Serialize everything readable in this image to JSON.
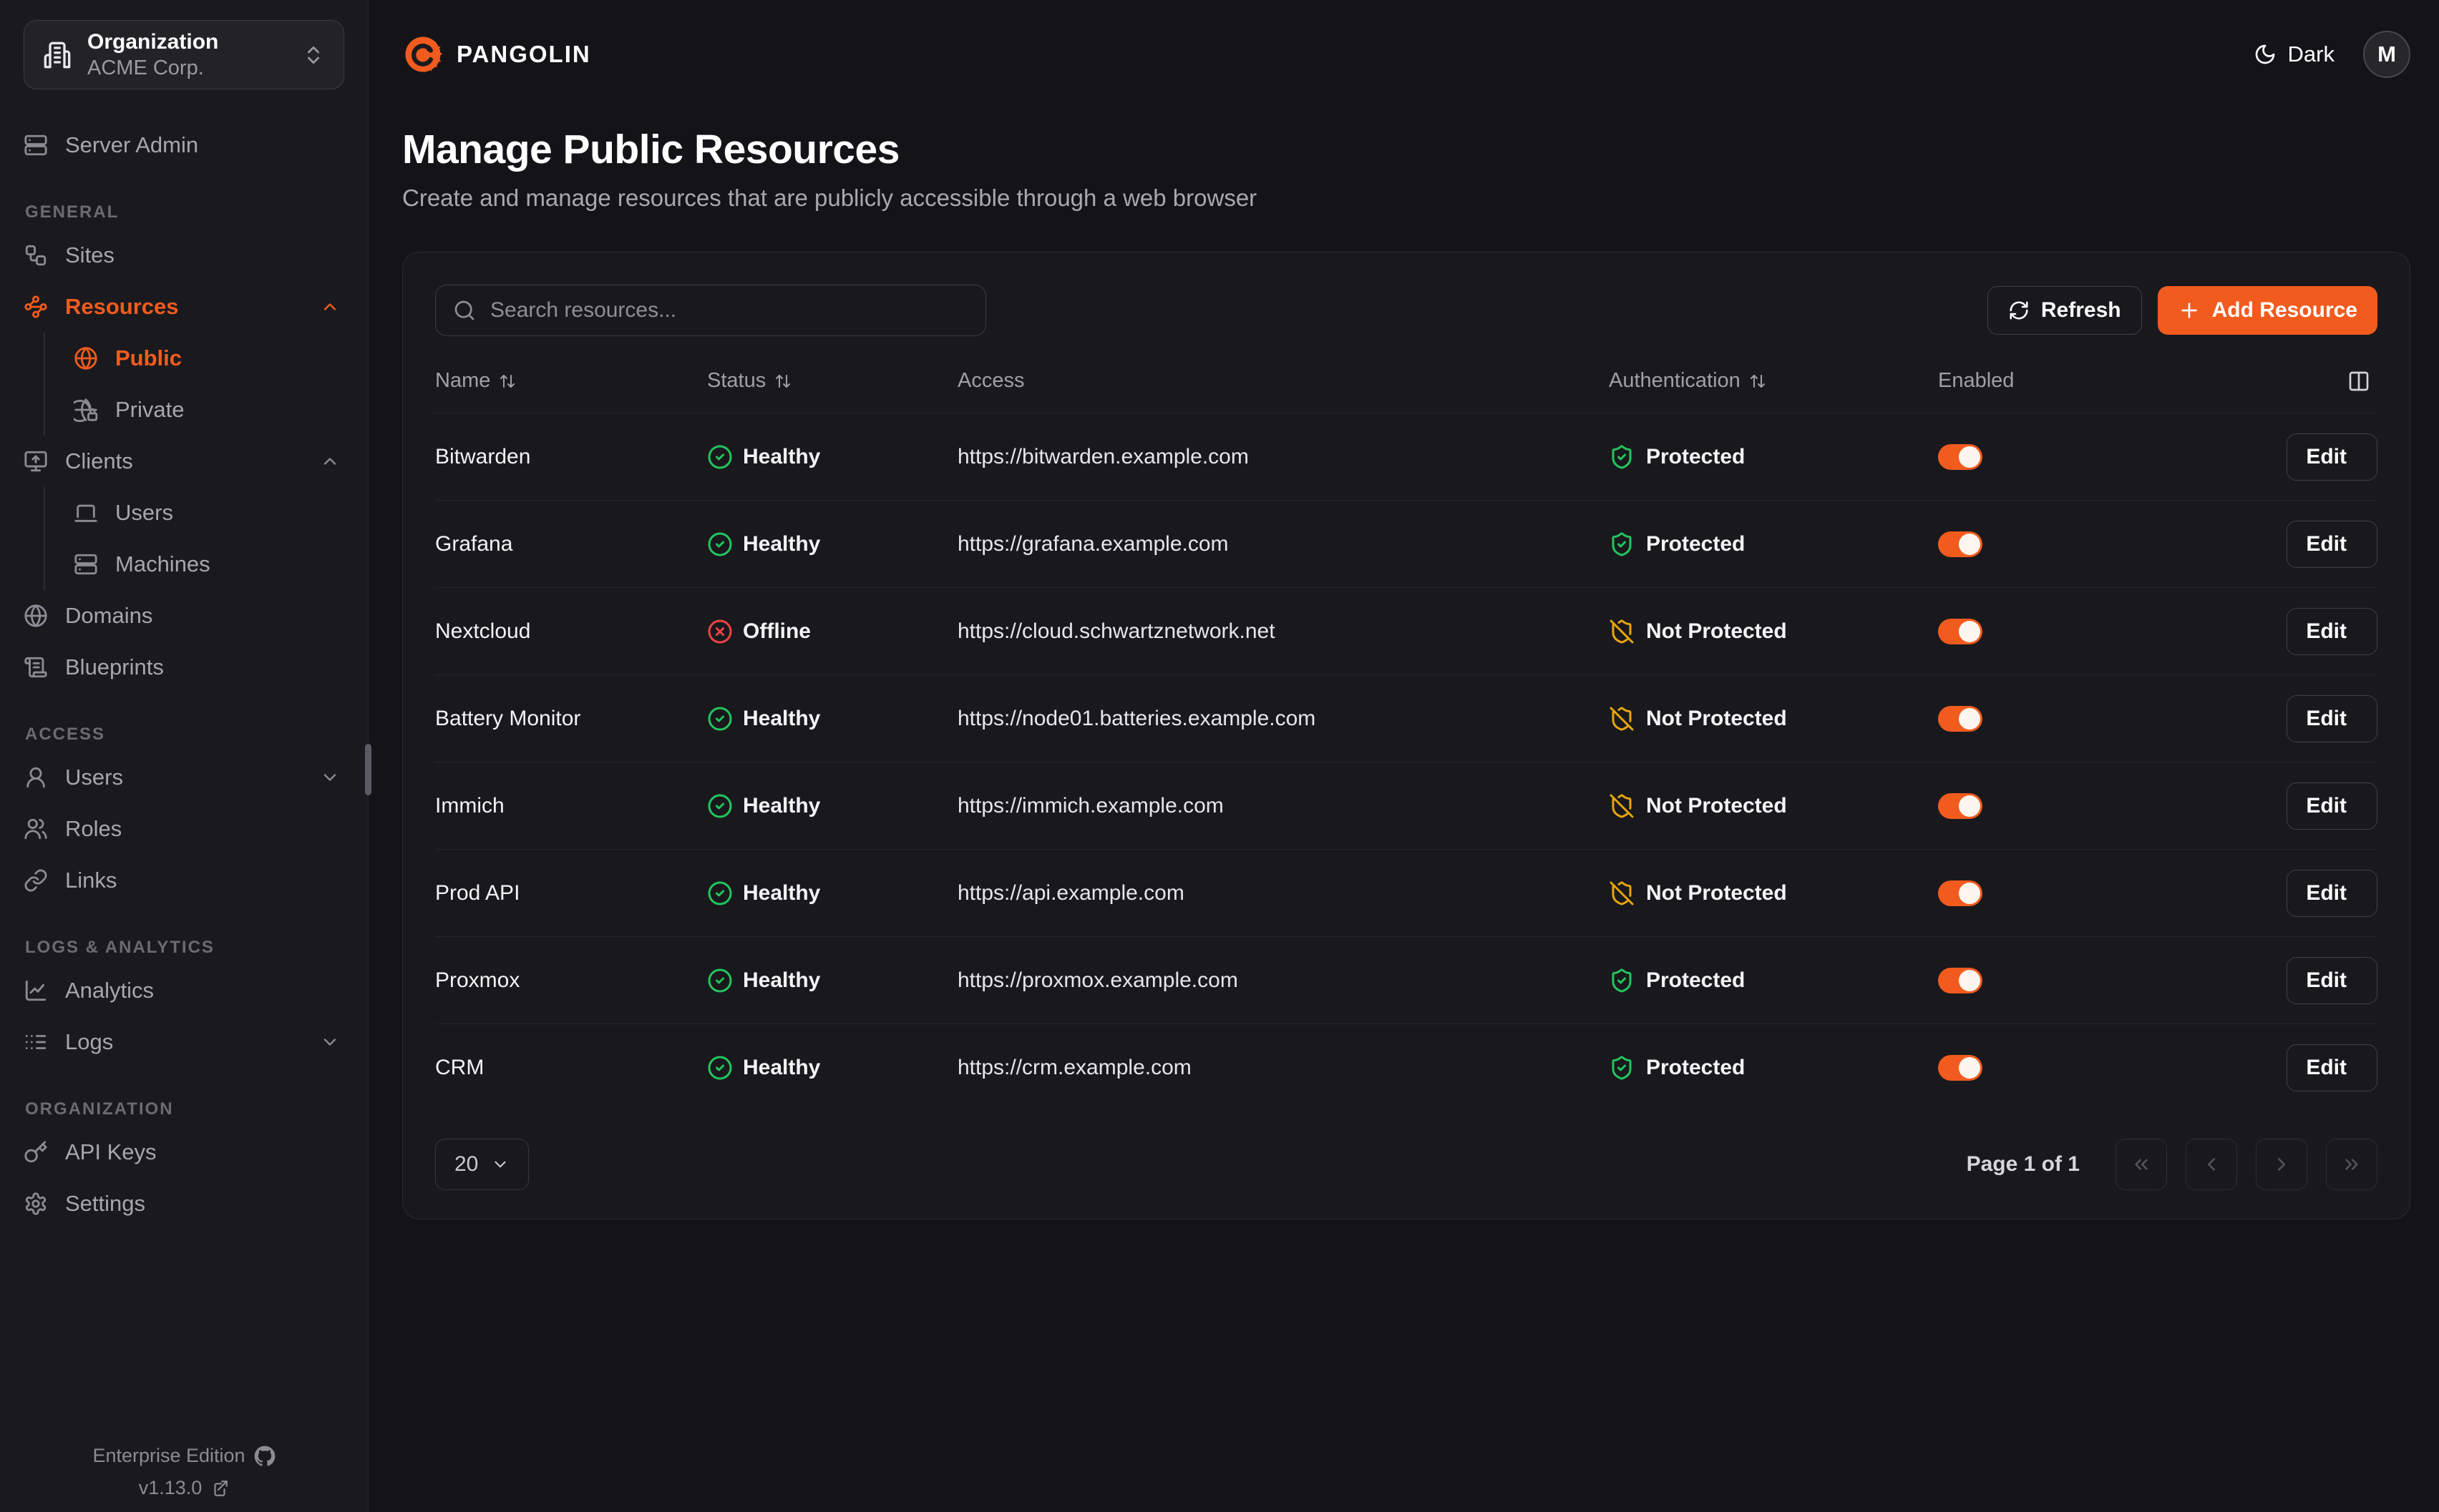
{
  "theme": {
    "accent": "#f25b1e",
    "healthy_green": "#22c55e",
    "offline_red": "#ef4444",
    "warning_amber": "#e7a50c"
  },
  "sidebar": {
    "org_switcher": {
      "label": "Organization",
      "value": "ACME Corp.",
      "icon": "building"
    },
    "server_admin": {
      "label": "Server Admin",
      "icon": "server"
    },
    "sections": [
      {
        "label": "GENERAL",
        "items": [
          {
            "label": "Sites",
            "icon": "workflow"
          },
          {
            "label": "Resources",
            "icon": "waypoints",
            "active": true,
            "chevron": "up",
            "children": [
              {
                "label": "Public",
                "icon": "globe",
                "active": true
              },
              {
                "label": "Private",
                "icon": "globe-lock"
              }
            ]
          },
          {
            "label": "Clients",
            "icon": "monitor-up",
            "chevron": "up",
            "children": [
              {
                "label": "Users",
                "icon": "laptop"
              },
              {
                "label": "Machines",
                "icon": "server"
              }
            ]
          },
          {
            "label": "Domains",
            "icon": "globe"
          },
          {
            "label": "Blueprints",
            "icon": "scroll-text"
          }
        ]
      },
      {
        "label": "ACCESS",
        "items": [
          {
            "label": "Users",
            "icon": "user",
            "chevron": "down"
          },
          {
            "label": "Roles",
            "icon": "users"
          },
          {
            "label": "Links",
            "icon": "link"
          }
        ]
      },
      {
        "label": "LOGS & ANALYTICS",
        "items": [
          {
            "label": "Analytics",
            "icon": "chart-line"
          },
          {
            "label": "Logs",
            "icon": "logs",
            "chevron": "down"
          }
        ]
      },
      {
        "label": "ORGANIZATION",
        "items": [
          {
            "label": "API Keys",
            "icon": "key"
          },
          {
            "label": "Settings",
            "icon": "settings"
          }
        ]
      }
    ],
    "footer": {
      "edition": "Enterprise Edition",
      "version": "v1.13.0"
    }
  },
  "header": {
    "brand": "PANGOLIN",
    "theme_toggle_label": "Dark",
    "avatar_initial": "M"
  },
  "page": {
    "title": "Manage Public Resources",
    "subtitle": "Create and manage resources that are publicly accessible through a web browser"
  },
  "toolbar": {
    "search_placeholder": "Search resources...",
    "refresh_label": "Refresh",
    "add_label": "Add Resource"
  },
  "table": {
    "columns": [
      {
        "label": "Name",
        "sortable": true
      },
      {
        "label": "Status",
        "sortable": true
      },
      {
        "label": "Access",
        "sortable": false
      },
      {
        "label": "Authentication",
        "sortable": true
      },
      {
        "label": "Enabled",
        "sortable": false
      }
    ],
    "edit_label": "Edit",
    "rows": [
      {
        "name": "Bitwarden",
        "status": "Healthy",
        "status_kind": "healthy",
        "url": "https://bitwarden.example.com",
        "auth": "Protected",
        "auth_kind": "protected",
        "enabled": true
      },
      {
        "name": "Grafana",
        "status": "Healthy",
        "status_kind": "healthy",
        "url": "https://grafana.example.com",
        "auth": "Protected",
        "auth_kind": "protected",
        "enabled": true
      },
      {
        "name": "Nextcloud",
        "status": "Offline",
        "status_kind": "offline",
        "url": "https://cloud.schwartznetwork.net",
        "auth": "Not Protected",
        "auth_kind": "unprotected",
        "enabled": true
      },
      {
        "name": "Battery Monitor",
        "status": "Healthy",
        "status_kind": "healthy",
        "url": "https://node01.batteries.example.com",
        "auth": "Not Protected",
        "auth_kind": "unprotected",
        "enabled": true
      },
      {
        "name": "Immich",
        "status": "Healthy",
        "status_kind": "healthy",
        "url": "https://immich.example.com",
        "auth": "Not Protected",
        "auth_kind": "unprotected",
        "enabled": true
      },
      {
        "name": "Prod API",
        "status": "Healthy",
        "status_kind": "healthy",
        "url": "https://api.example.com",
        "auth": "Not Protected",
        "auth_kind": "unprotected",
        "enabled": true
      },
      {
        "name": "Proxmox",
        "status": "Healthy",
        "status_kind": "healthy",
        "url": "https://proxmox.example.com",
        "auth": "Protected",
        "auth_kind": "protected",
        "enabled": true
      },
      {
        "name": "CRM",
        "status": "Healthy",
        "status_kind": "healthy",
        "url": "https://crm.example.com",
        "auth": "Protected",
        "auth_kind": "protected",
        "enabled": true
      }
    ]
  },
  "pagination": {
    "page_size": "20",
    "label": "Page 1 of 1"
  }
}
